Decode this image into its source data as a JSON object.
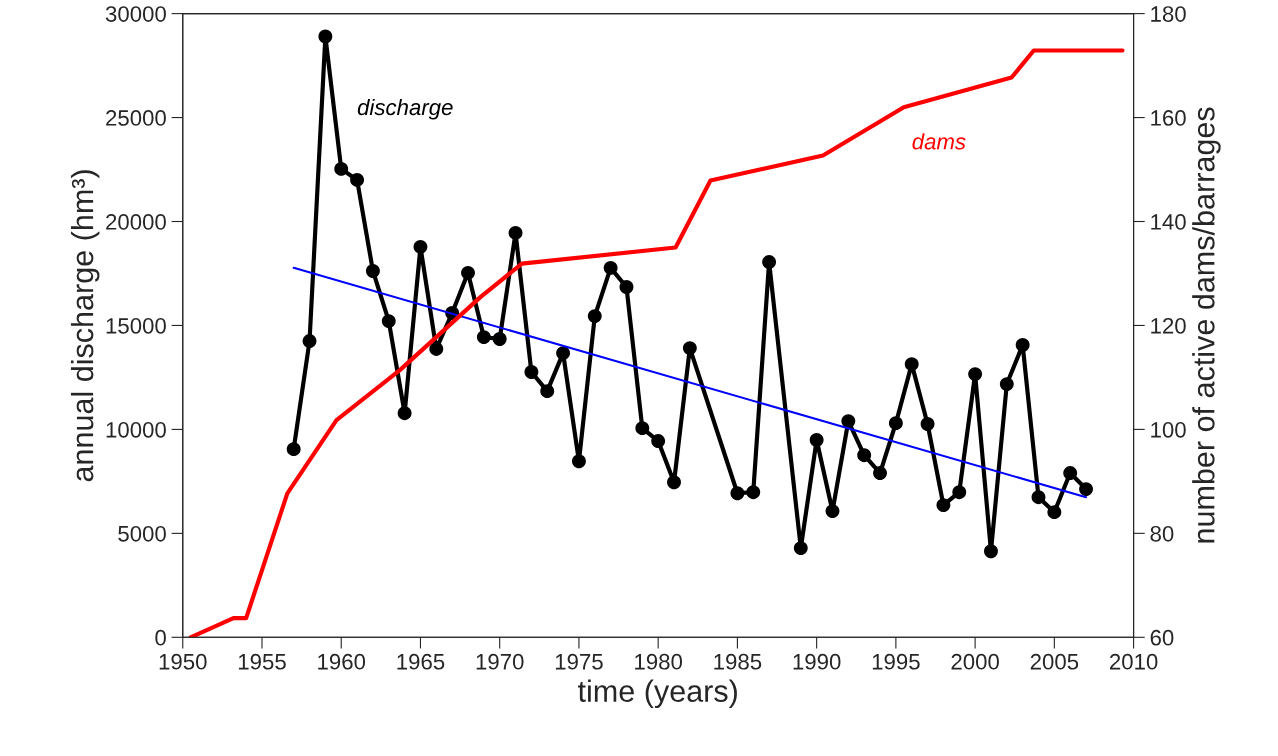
{
  "chart_data": {
    "type": "line",
    "xlabel": "time (years)",
    "ylabel": "annual discharge (hm³)",
    "y2label": "number of active dams/barrages",
    "xlim": [
      1950,
      2010
    ],
    "xticks": [
      1950,
      1955,
      1960,
      1965,
      1970,
      1975,
      1980,
      1985,
      1990,
      1995,
      2000,
      2005,
      2010
    ],
    "ylim": [
      0,
      30000
    ],
    "yticks": [
      0,
      5000,
      10000,
      15000,
      20000,
      25000,
      30000
    ],
    "y2lim": [
      60,
      180
    ],
    "y2ticks": [
      60,
      80,
      100,
      120,
      140,
      160,
      180
    ],
    "grid": false,
    "legend": false,
    "series": [
      {
        "name": "discharge",
        "color": "#000000",
        "marker": "circle",
        "x": [
          1957,
          1958,
          1959,
          1960,
          1961,
          1962,
          1963,
          1964,
          1965,
          1966,
          1967,
          1968,
          1969,
          1970,
          1971,
          1972,
          1973,
          1974,
          1975,
          1976,
          1977,
          1978,
          1979,
          1980,
          1981,
          1982,
          1985,
          1986,
          1987,
          1989,
          1990,
          1991,
          1992,
          1993,
          1994,
          1995,
          1996,
          1997,
          1998,
          1999,
          2000,
          2001,
          2002,
          2003,
          2004,
          2005,
          2006,
          2007
        ],
        "values": [
          9050,
          14250,
          28900,
          22530,
          22000,
          17620,
          15210,
          10780,
          18780,
          13870,
          15600,
          17530,
          14440,
          14350,
          19450,
          12760,
          11840,
          13670,
          8470,
          15450,
          17770,
          16850,
          10060,
          9440,
          7460,
          13910,
          6930,
          6980,
          18050,
          4290,
          9490,
          6070,
          10400,
          8760,
          7900,
          10300,
          13140,
          10260,
          6360,
          6980,
          12660,
          4140,
          12180,
          14060,
          6740,
          6020,
          7900,
          7130
        ]
      },
      {
        "color": "#0000ff",
        "marker": "none",
        "x": [
          1957,
          2007
        ],
        "values": [
          17770,
          6740
        ]
      },
      {
        "name": "dams",
        "color": "#ff0000",
        "marker": "none",
        "axis": "y2",
        "x": [
          1950.5,
          1953.2,
          1954.0,
          1956.6,
          1959.7,
          1963.7,
          1968.8,
          1971.4,
          1981.1,
          1983.3,
          1990.4,
          1995.5,
          2002.3,
          2003.7,
          2009.3
        ],
        "values": [
          60,
          63.7,
          63.7,
          87.7,
          101.8,
          111.4,
          125.5,
          131.9,
          135,
          147.9,
          152.7,
          162,
          167.7,
          172.9,
          172.9
        ]
      }
    ]
  }
}
